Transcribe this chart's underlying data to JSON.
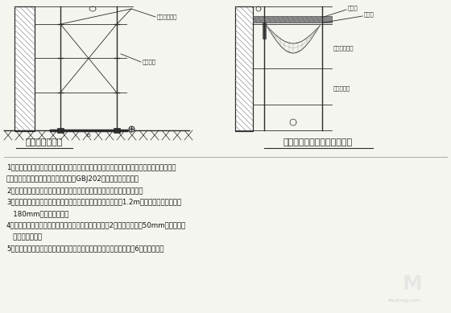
{
  "bg_color": "#f5f5f0",
  "lc": "#2a2a2a",
  "title1": "脚手架基础构造",
  "title2": "作业层防护栏杆与挡脚板构造",
  "label_l1": "密目式安全网",
  "label_l2": "腾手斜撞",
  "label_r1": "扶手栏",
  "label_r2": "挡脚板",
  "label_r3": "密目式安全网",
  "label_r4": "水平安全网",
  "text_lines": [
    "1、脚手架地基与基础的施工，必须根据脚手架搭设高度、搭设场地地质情况与现行国家标准",
    "《地基与基础工程施工及验收规范》（GBJ202）的有关规定进行。",
    "2、脚手架施工前，基础必须验收合格，并按施工组织设计要求放线定位。",
    "3、作业层栏杆和挡脚板均应搭设在外立杆内侧，上栏杆上皮高1.2m，挡脚板高度不应小于",
    "   180mm，中栏杆居中。",
    "4、底座、垫板均应准确放在定位线上，垫板长度不少于2蹌，厕度不小于50mm的木垫板，",
    "   也可采用槽锂。",
    "5、一字型、开口型双排脚手架的两端必须设置横向斜撞，中间宜每隔6蹌设置一道。"
  ]
}
